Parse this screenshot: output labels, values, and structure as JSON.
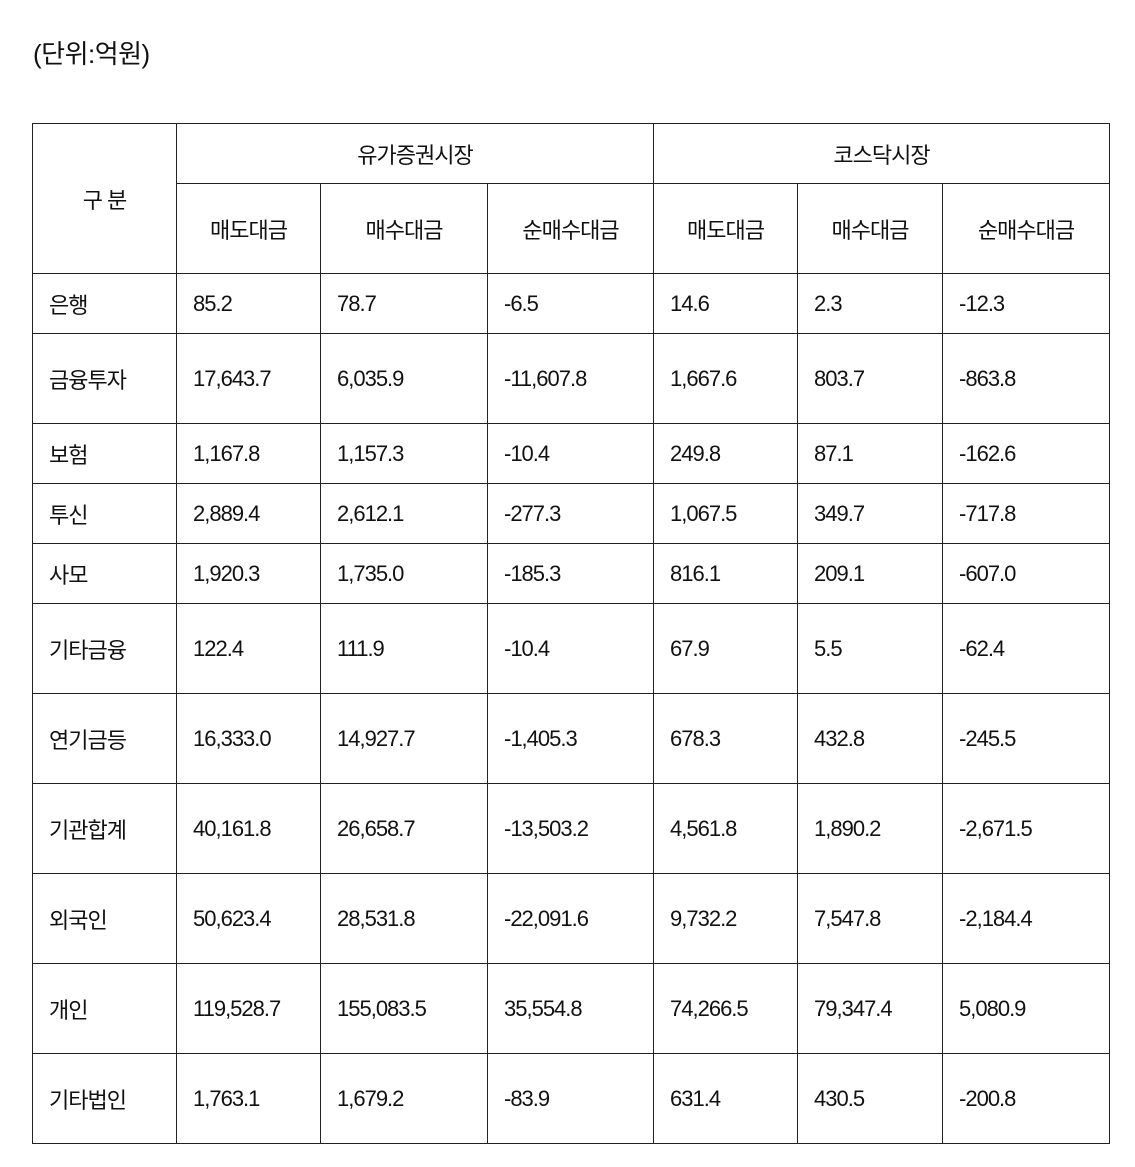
{
  "unit_label": "(단위:억원)",
  "table": {
    "corner_label": "구 분",
    "groups": [
      "유가증권시장",
      "코스닥시장"
    ],
    "subheaders": [
      "매도대금",
      "매수대금",
      "순매수대금",
      "매도대금",
      "매수대금",
      "순매수대금"
    ],
    "rows": [
      {
        "label": "은행",
        "values": [
          "85.2",
          "78.7",
          "-6.5",
          "14.6",
          "2.3",
          "-12.3"
        ]
      },
      {
        "label": "금융투자",
        "values": [
          "17,643.7",
          "6,035.9",
          "-11,607.8",
          "1,667.6",
          "803.7",
          "-863.8"
        ]
      },
      {
        "label": "보험",
        "values": [
          "1,167.8",
          "1,157.3",
          "-10.4",
          "249.8",
          "87.1",
          "-162.6"
        ]
      },
      {
        "label": "투신",
        "values": [
          "2,889.4",
          "2,612.1",
          "-277.3",
          "1,067.5",
          "349.7",
          "-717.8"
        ]
      },
      {
        "label": "사모",
        "values": [
          "1,920.3",
          "1,735.0",
          "-185.3",
          "816.1",
          "209.1",
          "-607.0"
        ]
      },
      {
        "label": "기타금융",
        "values": [
          "122.4",
          "111.9",
          "-10.4",
          "67.9",
          "5.5",
          "-62.4"
        ]
      },
      {
        "label": "연기금등",
        "values": [
          "16,333.0",
          "14,927.7",
          "-1,405.3",
          "678.3",
          "432.8",
          "-245.5"
        ]
      },
      {
        "label": "기관합계",
        "values": [
          "40,161.8",
          "26,658.7",
          "-13,503.2",
          "4,561.8",
          "1,890.2",
          "-2,671.5"
        ]
      },
      {
        "label": "외국인",
        "values": [
          "50,623.4",
          "28,531.8",
          "-22,091.6",
          "9,732.2",
          "7,547.8",
          "-2,184.4"
        ]
      },
      {
        "label": "개인",
        "values": [
          "119,528.7",
          "155,083.5",
          "35,554.8",
          "74,266.5",
          "79,347.4",
          "5,080.9"
        ]
      },
      {
        "label": "기타법인",
        "values": [
          "1,763.1",
          "1,679.2",
          "-83.9",
          "631.4",
          "430.5",
          "-200.8"
        ]
      }
    ]
  }
}
